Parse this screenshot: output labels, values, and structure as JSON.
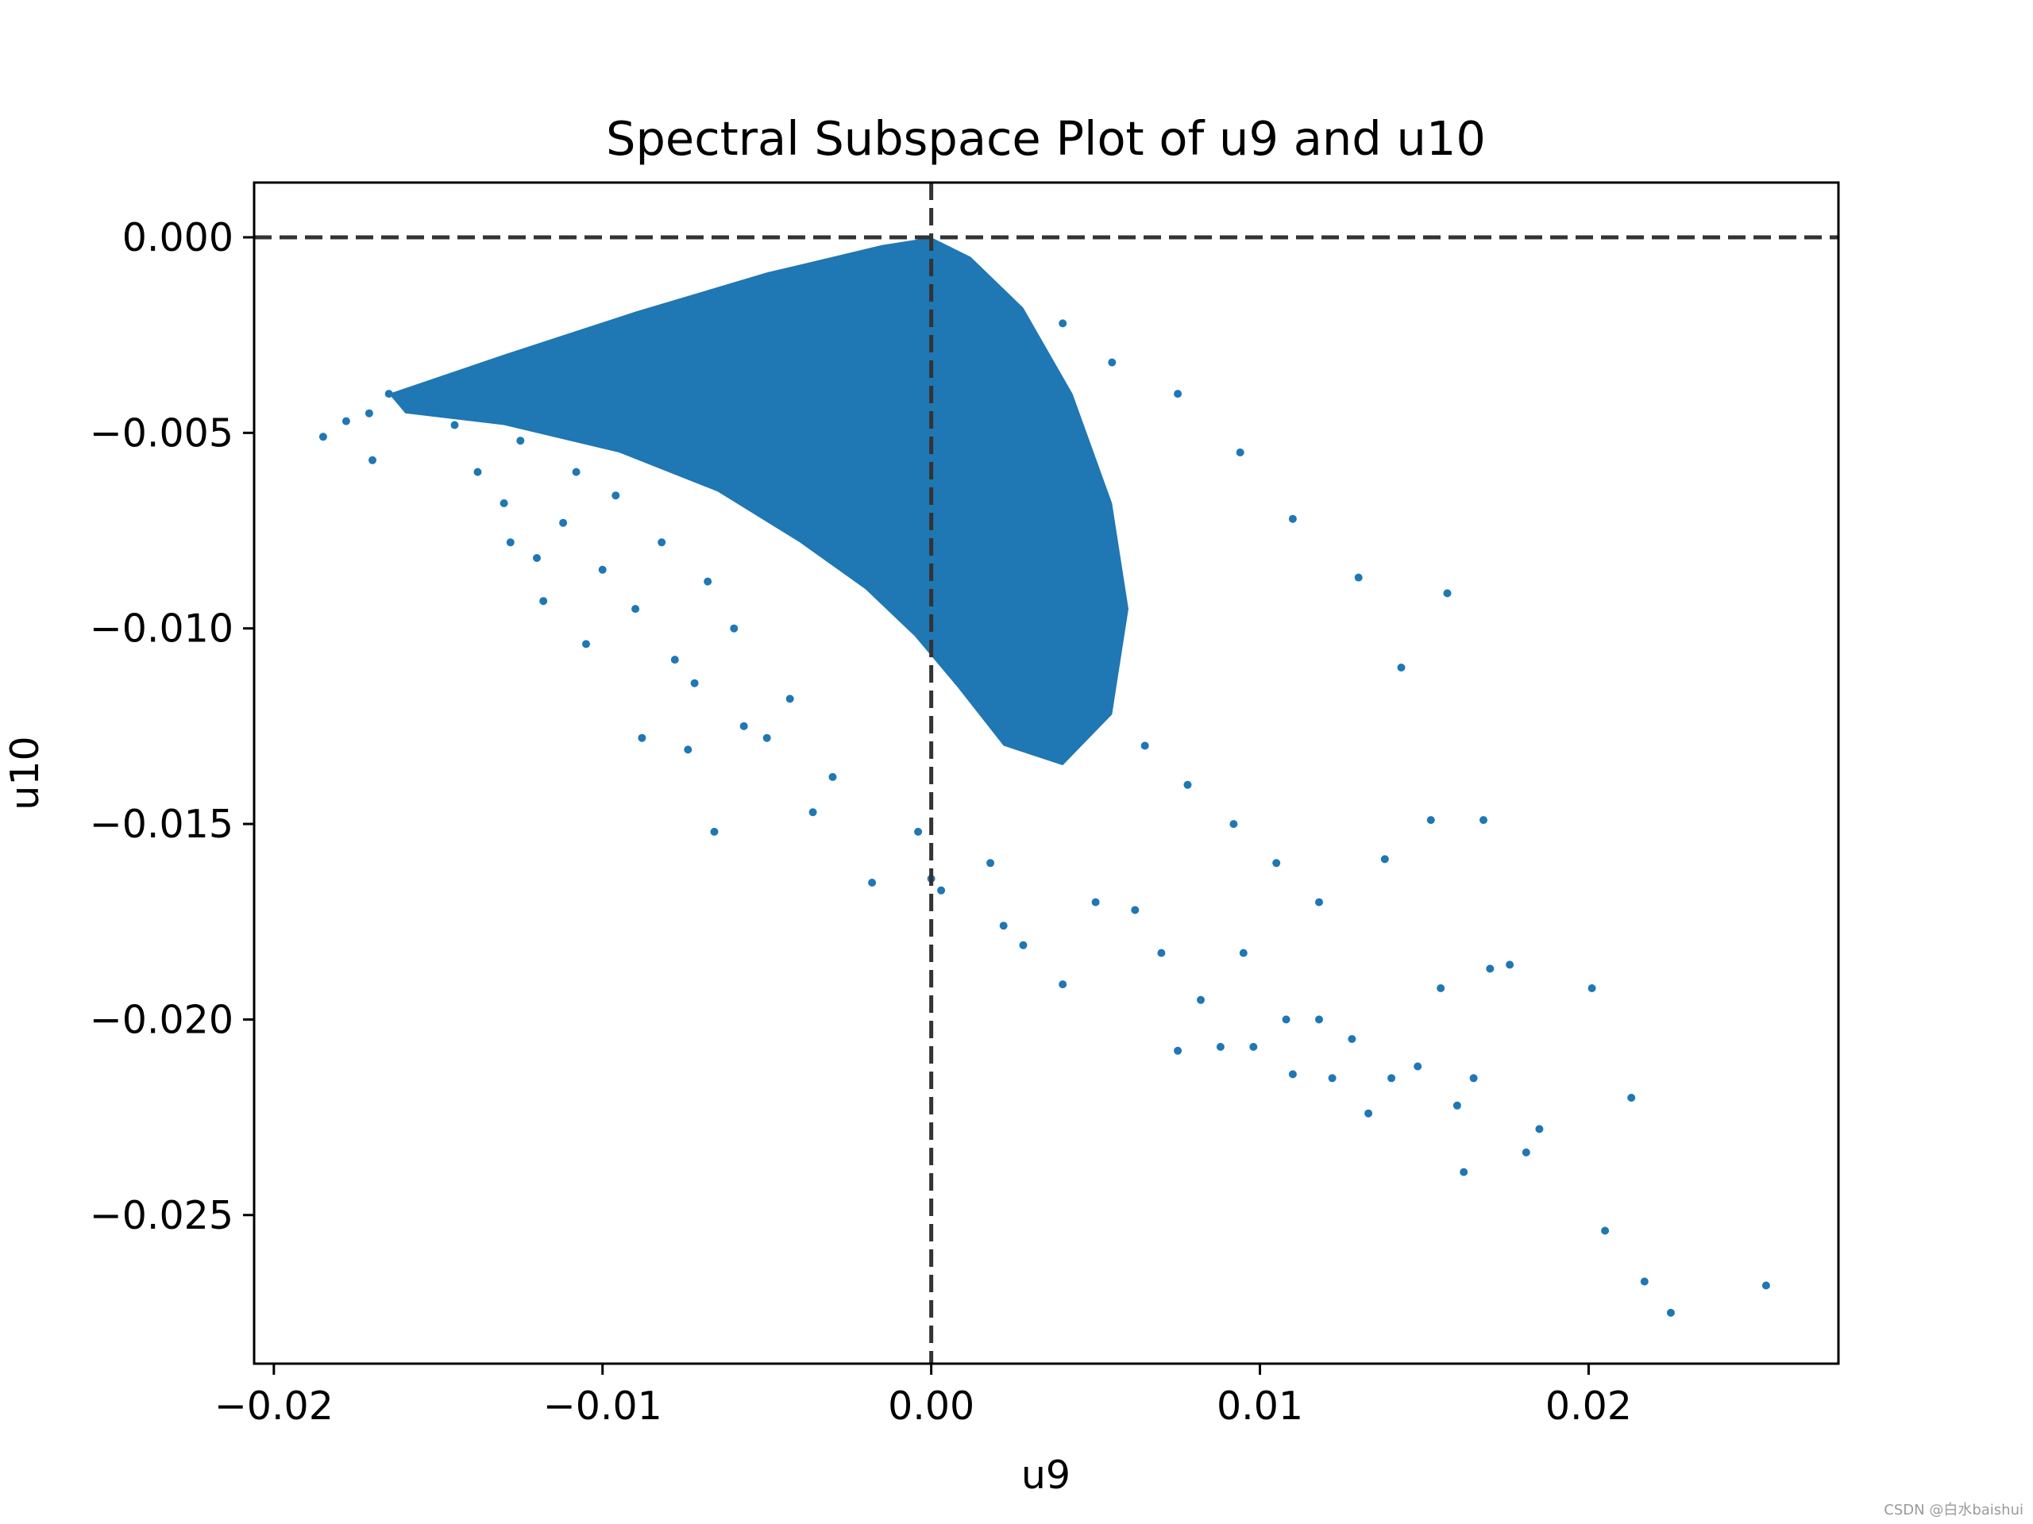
{
  "chart_data": {
    "type": "scatter",
    "title": "Spectral Subspace Plot of u9 and u10",
    "xlabel": "u9",
    "ylabel": "u10",
    "xlim": [
      -0.0206,
      0.0276
    ],
    "ylim": [
      -0.0288,
      0.0014
    ],
    "xticks": [
      -0.02,
      -0.01,
      0.0,
      0.01,
      0.02
    ],
    "xtick_labels": [
      "−0.02",
      "−0.01",
      "0.00",
      "0.01",
      "0.02"
    ],
    "yticks": [
      0.0,
      -0.005,
      -0.01,
      -0.015,
      -0.02,
      -0.025
    ],
    "ytick_labels": [
      "0.000",
      "−0.005",
      "−0.010",
      "−0.015",
      "−0.020",
      "−0.025"
    ],
    "reference_lines": [
      {
        "orientation": "horizontal",
        "value": 0.0,
        "style": "dashed",
        "color": "#333333"
      },
      {
        "orientation": "vertical",
        "value": 0.0,
        "style": "dashed",
        "color": "#333333"
      }
    ],
    "grid": false,
    "legend": "none",
    "point_color": "#1f77b4",
    "series": [
      {
        "points": [
          [
            -0.0185,
            -0.0051
          ],
          [
            -0.0178,
            -0.0047
          ],
          [
            -0.0171,
            -0.0045
          ],
          [
            -0.017,
            -0.0057
          ],
          [
            -0.0165,
            -0.004
          ],
          [
            -0.0158,
            -0.0043
          ],
          [
            -0.015,
            -0.0039
          ],
          [
            -0.0145,
            -0.0048
          ],
          [
            -0.0138,
            -0.006
          ],
          [
            -0.013,
            -0.0068
          ],
          [
            -0.0128,
            -0.0078
          ],
          [
            -0.0125,
            -0.0052
          ],
          [
            -0.012,
            -0.0082
          ],
          [
            -0.0118,
            -0.0093
          ],
          [
            -0.0112,
            -0.0073
          ],
          [
            -0.0108,
            -0.006
          ],
          [
            -0.0105,
            -0.0104
          ],
          [
            -0.01,
            -0.0085
          ],
          [
            -0.0096,
            -0.0066
          ],
          [
            -0.009,
            -0.0095
          ],
          [
            -0.0088,
            -0.0128
          ],
          [
            -0.0082,
            -0.0078
          ],
          [
            -0.0078,
            -0.0108
          ],
          [
            -0.0074,
            -0.0131
          ],
          [
            -0.0072,
            -0.0114
          ],
          [
            -0.0068,
            -0.0088
          ],
          [
            -0.0066,
            -0.0152
          ],
          [
            -0.006,
            -0.01
          ],
          [
            -0.0057,
            -0.0125
          ],
          [
            -0.005,
            -0.0128
          ],
          [
            -0.0043,
            -0.0118
          ],
          [
            -0.0036,
            -0.0147
          ],
          [
            -0.003,
            -0.0138
          ],
          [
            -0.0018,
            -0.0165
          ],
          [
            -0.0004,
            -0.0152
          ],
          [
            0.0,
            -0.0164
          ],
          [
            0.0003,
            -0.0167
          ],
          [
            0.0018,
            -0.016
          ],
          [
            0.0022,
            -0.0176
          ],
          [
            0.0028,
            -0.0181
          ],
          [
            0.004,
            -0.0191
          ],
          [
            0.005,
            -0.017
          ],
          [
            0.0062,
            -0.0172
          ],
          [
            0.007,
            -0.0183
          ],
          [
            0.0075,
            -0.0208
          ],
          [
            0.0082,
            -0.0195
          ],
          [
            0.0088,
            -0.0207
          ],
          [
            0.0095,
            -0.0183
          ],
          [
            0.0098,
            -0.0207
          ],
          [
            0.0108,
            -0.02
          ],
          [
            0.011,
            -0.0214
          ],
          [
            0.0118,
            -0.02
          ],
          [
            0.0122,
            -0.0215
          ],
          [
            0.0128,
            -0.0205
          ],
          [
            0.0133,
            -0.0224
          ],
          [
            0.014,
            -0.0215
          ],
          [
            0.0148,
            -0.0212
          ],
          [
            0.0155,
            -0.0192
          ],
          [
            0.016,
            -0.0222
          ],
          [
            0.0162,
            -0.0239
          ],
          [
            0.0165,
            -0.0215
          ],
          [
            0.017,
            -0.0187
          ],
          [
            0.0176,
            -0.0186
          ],
          [
            0.0181,
            -0.0234
          ],
          [
            0.0185,
            -0.0228
          ],
          [
            0.0201,
            -0.0192
          ],
          [
            0.0205,
            -0.0254
          ],
          [
            0.0213,
            -0.022
          ],
          [
            0.0217,
            -0.0267
          ],
          [
            0.0225,
            -0.0275
          ],
          [
            0.0254,
            -0.0268
          ],
          [
            0.0157,
            -0.0091
          ],
          [
            0.0143,
            -0.011
          ],
          [
            0.013,
            -0.0087
          ],
          [
            0.011,
            -0.0072
          ],
          [
            0.0094,
            -0.0055
          ],
          [
            0.0075,
            -0.004
          ],
          [
            0.0055,
            -0.0032
          ],
          [
            0.004,
            -0.0022
          ],
          [
            0.0168,
            -0.0149
          ],
          [
            0.0152,
            -0.0149
          ],
          [
            0.0138,
            -0.0159
          ],
          [
            0.0118,
            -0.017
          ],
          [
            0.0105,
            -0.016
          ],
          [
            0.0092,
            -0.015
          ],
          [
            0.0078,
            -0.014
          ],
          [
            0.0065,
            -0.013
          ],
          [
            0.005,
            -0.012
          ]
        ],
        "density_region": [
          [
            -0.0165,
            -0.004
          ],
          [
            -0.013,
            -0.003
          ],
          [
            -0.009,
            -0.0019
          ],
          [
            -0.005,
            -0.0009
          ],
          [
            -0.0015,
            -0.0002
          ],
          [
            0.0,
            0.0
          ],
          [
            0.0012,
            -0.0005
          ],
          [
            0.0028,
            -0.0018
          ],
          [
            0.0043,
            -0.004
          ],
          [
            0.0055,
            -0.0068
          ],
          [
            0.006,
            -0.0095
          ],
          [
            0.0055,
            -0.0122
          ],
          [
            0.004,
            -0.0135
          ],
          [
            0.0022,
            -0.013
          ],
          [
            0.0008,
            -0.0115
          ],
          [
            -0.0005,
            -0.0102
          ],
          [
            -0.002,
            -0.009
          ],
          [
            -0.004,
            -0.0078
          ],
          [
            -0.0065,
            -0.0065
          ],
          [
            -0.0095,
            -0.0055
          ],
          [
            -0.013,
            -0.0048
          ],
          [
            -0.016,
            -0.0045
          ]
        ]
      }
    ]
  }
}
